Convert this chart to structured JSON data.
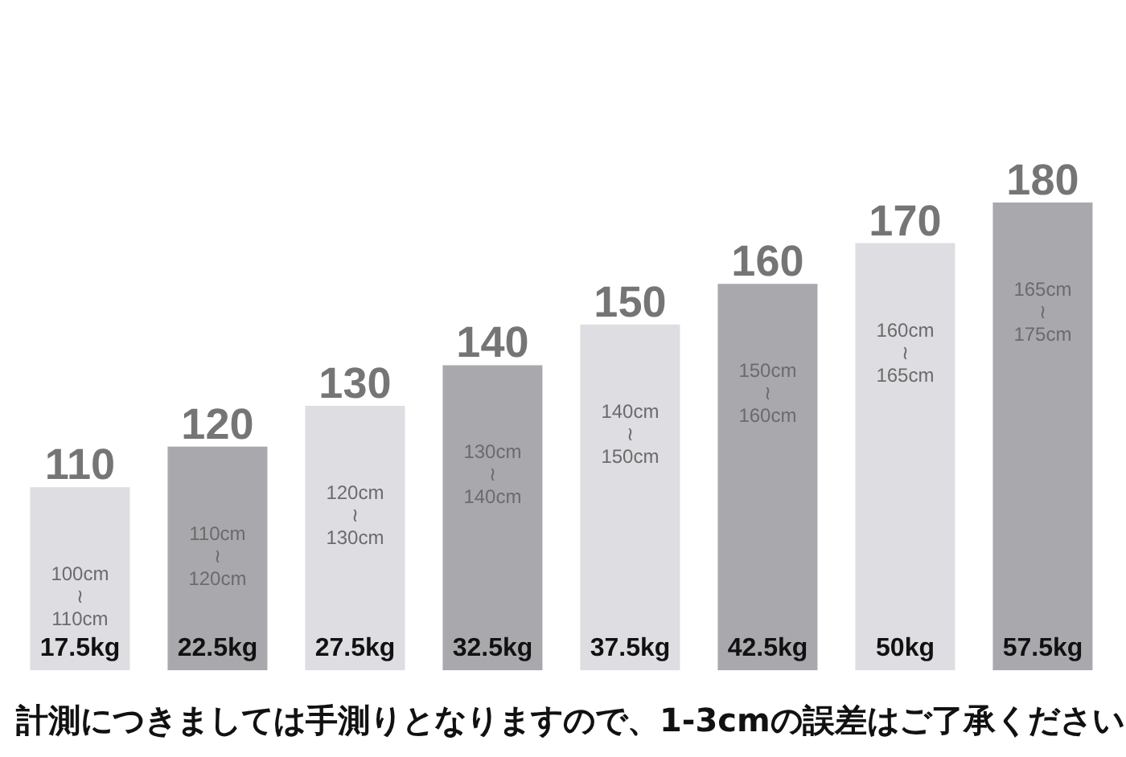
{
  "chart_data": {
    "type": "bar",
    "categories": [
      "17.5kg",
      "22.5kg",
      "27.5kg",
      "32.5kg",
      "37.5kg",
      "42.5kg",
      "50kg",
      "57.5kg"
    ],
    "values": [
      110,
      120,
      130,
      140,
      150,
      160,
      170,
      180
    ],
    "colors": [
      "#dedde2",
      "#a9a8ad",
      "#dedde2",
      "#a9a8ad",
      "#dedde2",
      "#a9a8ad",
      "#dedde2",
      "#a9a8ad"
    ],
    "data_labels": true,
    "ylim": [
      65,
      180
    ],
    "tick_labels": "x",
    "annotations": [
      "100cm\n≀\n110cm",
      "110cm\n≀\n120cm",
      "120cm\n≀\n130cm",
      "130cm\n≀\n140cm",
      "140cm\n≀\n150cm",
      "150cm\n≀\n160cm",
      "160cm\n≀\n165cm",
      "165cm\n≀\n175cm",
      "計測につきましては手測りとなりますので、1-3cmの誤差はご了承ください"
    ]
  }
}
